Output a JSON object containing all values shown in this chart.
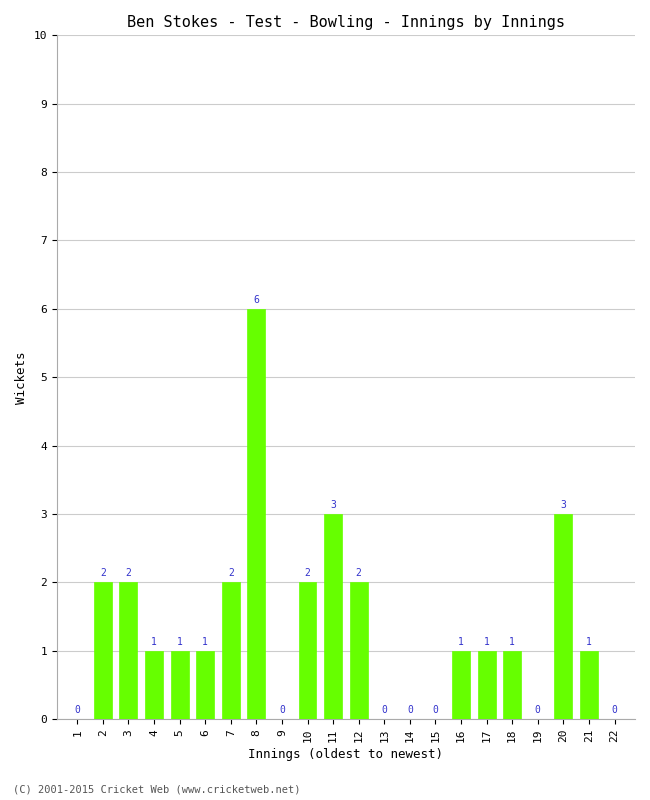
{
  "title": "Ben Stokes - Test - Bowling - Innings by Innings",
  "xlabel": "Innings (oldest to newest)",
  "ylabel": "Wickets",
  "innings": [
    1,
    2,
    3,
    4,
    5,
    6,
    7,
    8,
    9,
    10,
    11,
    12,
    13,
    14,
    15,
    16,
    17,
    18,
    19,
    20,
    21,
    22
  ],
  "wickets": [
    0,
    2,
    2,
    1,
    1,
    1,
    2,
    6,
    0,
    2,
    3,
    2,
    0,
    0,
    0,
    1,
    1,
    1,
    0,
    3,
    1,
    0
  ],
  "bar_color": "#66ff00",
  "bar_edge_color": "#66ff00",
  "label_color": "#3333cc",
  "background_color": "#ffffff",
  "ylim": [
    0,
    10
  ],
  "yticks": [
    0,
    1,
    2,
    3,
    4,
    5,
    6,
    7,
    8,
    9,
    10
  ],
  "grid_color": "#cccccc",
  "title_fontsize": 11,
  "axis_label_fontsize": 9,
  "tick_fontsize": 8,
  "label_fontsize": 7,
  "copyright": "(C) 2001-2015 Cricket Web (www.cricketweb.net)"
}
